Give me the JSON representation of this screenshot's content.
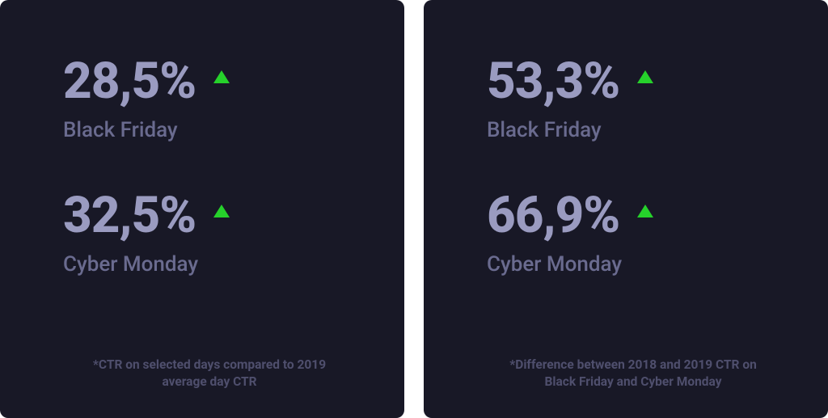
{
  "colors": {
    "card_bg": "#181826",
    "value": "#9a9bc0",
    "label": "#6a6b8f",
    "footnote": "#4f4f6d",
    "arrow": "#26d12b"
  },
  "cards": [
    {
      "metrics": [
        {
          "value": "28,5%",
          "label": "Black Friday",
          "direction": "up"
        },
        {
          "value": "32,5%",
          "label": "Cyber Monday",
          "direction": "up"
        }
      ],
      "footnote": "*CTR on selected days compared to 2019 average day CTR"
    },
    {
      "metrics": [
        {
          "value": "53,3%",
          "label": "Black Friday",
          "direction": "up"
        },
        {
          "value": "66,9%",
          "label": "Cyber Monday",
          "direction": "up"
        }
      ],
      "footnote": "*Difference between 2018 and 2019 CTR on Black Friday and Cyber Monday"
    }
  ]
}
